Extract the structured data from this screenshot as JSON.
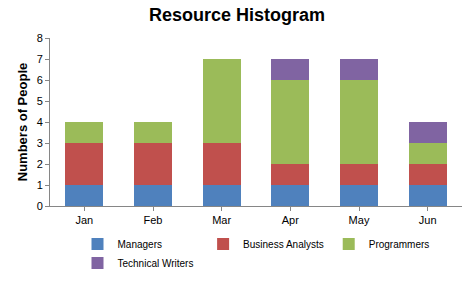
{
  "chart_data": {
    "type": "bar",
    "title": "Resource Histogram",
    "y_label": "Numbers of People",
    "categories": [
      "Jan",
      "Feb",
      "Mar",
      "Apr",
      "May",
      "Jun"
    ],
    "series": [
      {
        "name": "Managers",
        "color": "#4f81bd",
        "values": [
          1,
          1,
          1,
          1,
          1,
          1
        ]
      },
      {
        "name": "Business Analysts",
        "color": "#c0504d",
        "values": [
          2,
          2,
          2,
          1,
          1,
          1
        ]
      },
      {
        "name": "Programmers",
        "color": "#9bbb59",
        "values": [
          1,
          1,
          4,
          4,
          4,
          1
        ]
      },
      {
        "name": "Technical Writers",
        "color": "#8064a2",
        "values": [
          0,
          0,
          0,
          1,
          1,
          1
        ]
      }
    ],
    "stacked": true,
    "ylim": [
      0,
      8
    ],
    "yticks": [
      0,
      1,
      2,
      3,
      4,
      5,
      6,
      7,
      8
    ],
    "grid": false,
    "legend": "bottom"
  }
}
